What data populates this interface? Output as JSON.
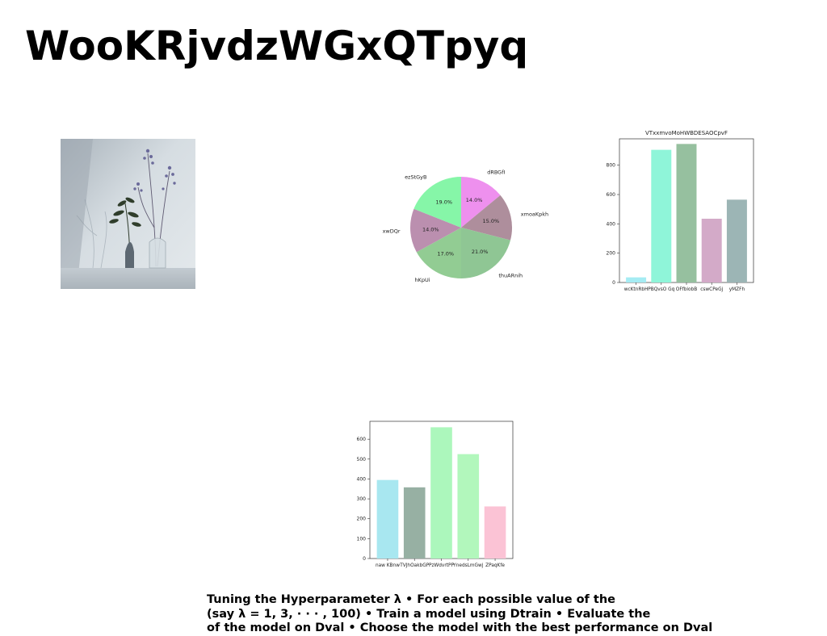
{
  "page": {
    "title": "WooKRjvdzWGxQTpyq"
  },
  "caption_lines": [
    "Tuning the Hyperparameter λ • For each possible value of the",
    "(say λ = 1, 3, · · · , 100) • Train a model using Dtrain • Evaluate the",
    "of the model on Dval • Choose the model with the best performance on Dval"
  ],
  "chart_data": [
    {
      "type": "pie",
      "title": "",
      "labels": [
        "dRBGfI",
        "xmoaKpkh",
        "thuARnih",
        "hKpUi",
        "xwDQr",
        "ezStGyB"
      ],
      "values": [
        14.0,
        15.0,
        21.0,
        17.0,
        14.0,
        19.0
      ],
      "value_labels": [
        "14.0%",
        "15.0%",
        "21.0%",
        "17.0%",
        "14.0%",
        "19.0%"
      ],
      "colors": [
        "#ee90ee",
        "#ae8e9c",
        "#8fc694",
        "#92cc93",
        "#bb8faf",
        "#86f6a8"
      ]
    },
    {
      "type": "bar",
      "title": "VTxxmvoMoHWBDESAOCpvF",
      "categories": [
        "wcKtnRbH",
        "PBQvsO Gq",
        "OFfbiobB",
        "cswCPeGj",
        "yMZFh"
      ],
      "values": [
        35,
        905,
        945,
        435,
        565
      ],
      "colors": [
        "#a5ecf3",
        "#8ff5d9",
        "#96c09f",
        "#d3aac8",
        "#9cb5b5"
      ],
      "ylim": [
        0,
        980
      ],
      "yticks": [
        0,
        200,
        400,
        600,
        800
      ]
    },
    {
      "type": "bar",
      "title": "",
      "categories": [
        "naw KBnw",
        "TVJhOakbGP",
        "PzWdvrtPP",
        "YnedsLmGwj",
        "ZPaqKfe"
      ],
      "values": [
        395,
        358,
        660,
        525,
        262
      ],
      "colors": [
        "#a8e7f0",
        "#97b0a3",
        "#acf7bc",
        "#b2f7bc",
        "#fbc3d5"
      ],
      "ylim": [
        0,
        690
      ],
      "yticks": [
        0,
        100,
        200,
        300,
        400,
        500,
        600
      ]
    }
  ]
}
